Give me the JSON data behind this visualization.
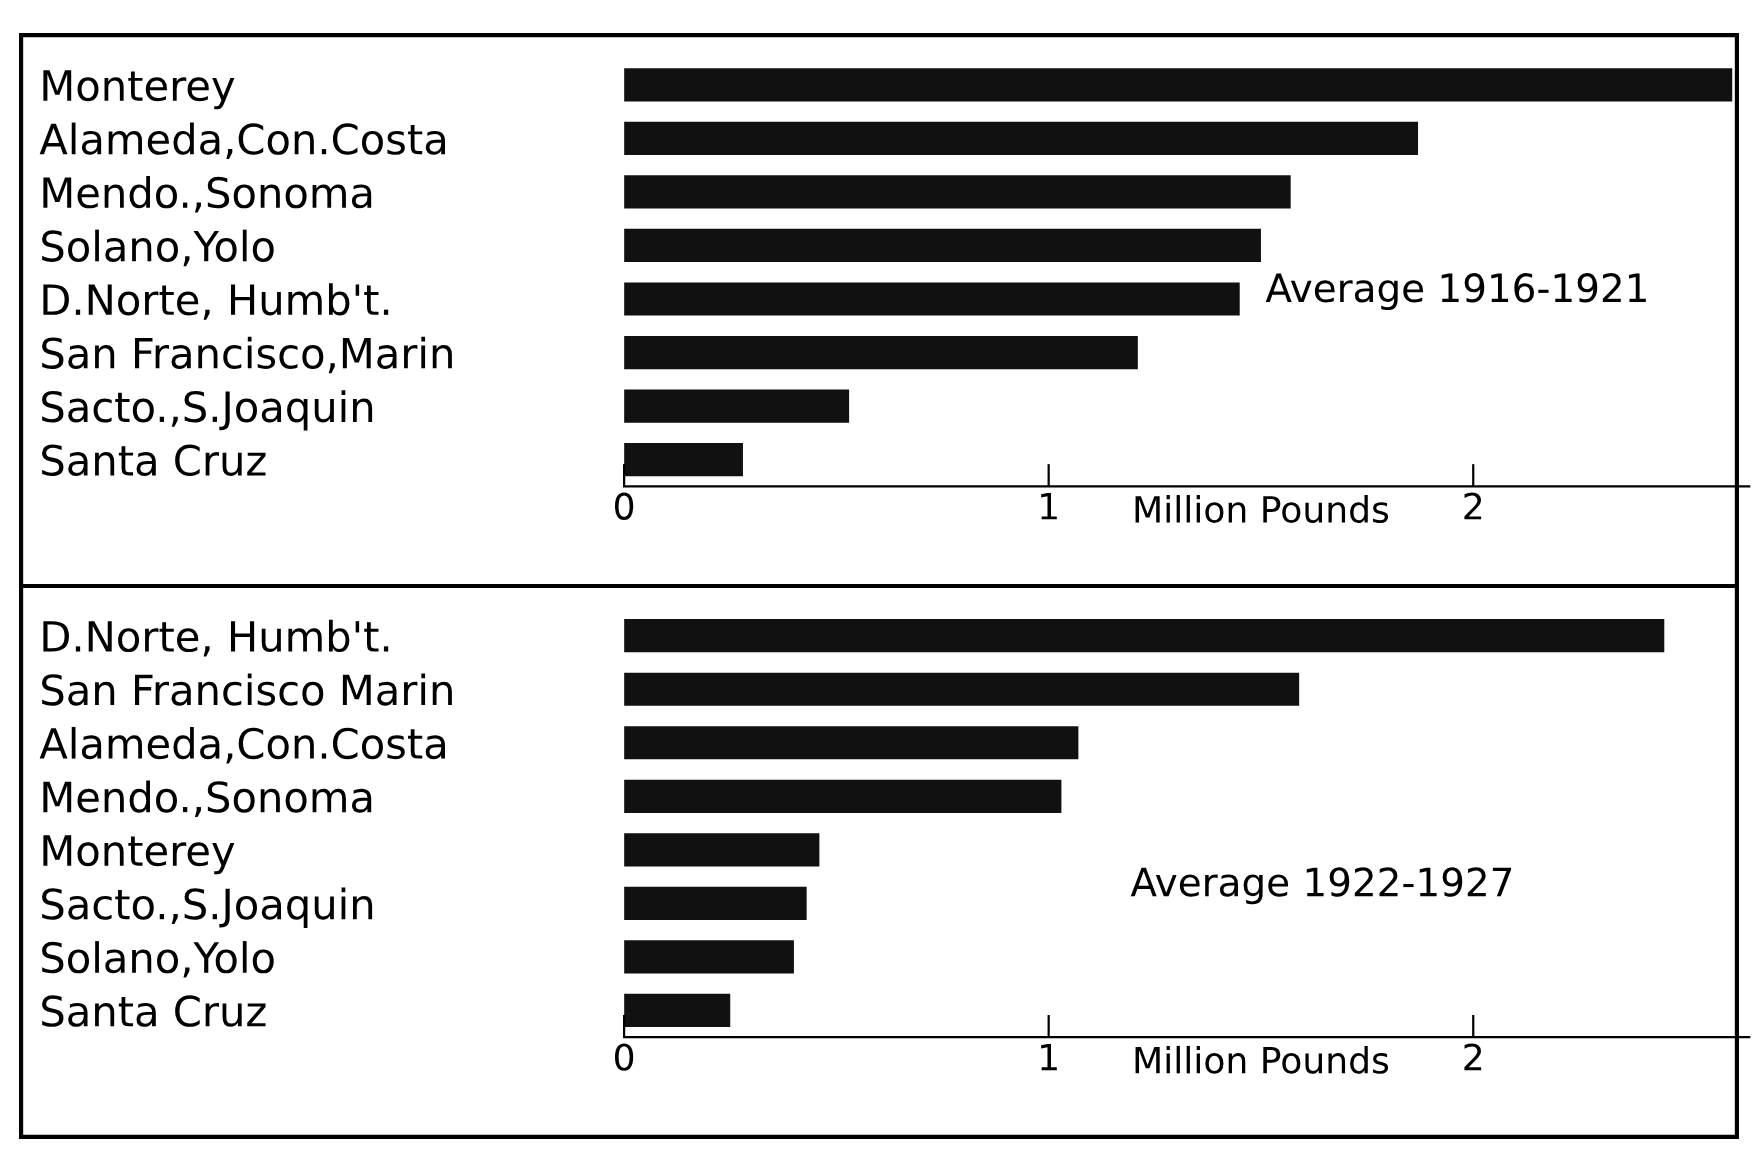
{
  "chart_data": [
    {
      "type": "bar",
      "orientation": "horizontal",
      "categories": [
        "Monterey",
        "Alameda,Con.Costa",
        "Mendo.,Sonoma",
        "Solano,Yolo",
        "D.Norte, Humb't.",
        "San Francisco,Marin",
        "Sacto.,S.Joaquin",
        "Santa Cruz"
      ],
      "values": [
        2.61,
        1.87,
        1.57,
        1.5,
        1.45,
        1.21,
        0.53,
        0.28
      ],
      "color": "#111111",
      "xlim": [
        0,
        2.65
      ],
      "xticks": [
        0,
        1,
        2
      ],
      "xlabel": "Million Pounds",
      "annotations": [
        "Average 1916-1921"
      ],
      "grid": false,
      "legend": false
    },
    {
      "type": "bar",
      "orientation": "horizontal",
      "categories": [
        "D.Norte, Humb't.",
        "San Francisco Marin",
        "Alameda,Con.Costa",
        "Mendo.,Sonoma",
        "Monterey",
        "Sacto.,S.Joaquin",
        "Solano,Yolo",
        "Santa Cruz"
      ],
      "values": [
        2.45,
        1.59,
        1.07,
        1.03,
        0.46,
        0.43,
        0.4,
        0.25
      ],
      "color": "#111111",
      "xlim": [
        0,
        2.65
      ],
      "xticks": [
        0,
        1,
        2
      ],
      "xlabel": "Million Pounds",
      "annotations": [
        "Average 1922-1927"
      ],
      "grid": false,
      "legend": false
    }
  ]
}
